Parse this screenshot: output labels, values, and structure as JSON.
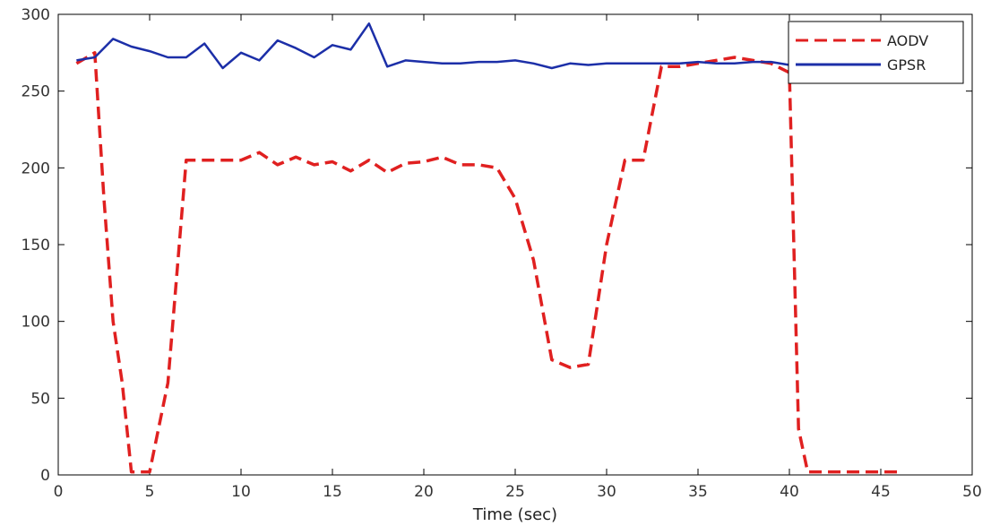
{
  "chart_data": {
    "type": "line",
    "title": "",
    "xlabel": "Time (sec)",
    "ylabel": "",
    "xlim": [
      0,
      50
    ],
    "ylim": [
      0,
      300
    ],
    "xticks": [
      0,
      5,
      10,
      15,
      20,
      25,
      30,
      35,
      40,
      45,
      50
    ],
    "yticks": [
      0,
      50,
      100,
      150,
      200,
      250,
      300
    ],
    "grid": false,
    "legend_position": "top-right",
    "series": [
      {
        "name": "AODV",
        "color": "#e02020",
        "style": "dashed",
        "x": [
          1,
          2,
          2.5,
          3,
          3.5,
          4,
          5,
          6,
          7,
          8,
          9,
          10,
          11,
          12,
          13,
          14,
          15,
          16,
          17,
          18,
          19,
          20,
          21,
          22,
          23,
          24,
          25,
          26,
          27,
          28,
          29,
          30,
          31,
          32,
          33,
          34,
          35,
          36,
          37,
          38,
          39,
          40,
          40.5,
          41,
          42,
          43,
          44,
          45,
          46
        ],
        "y": [
          268,
          275,
          180,
          100,
          60,
          2,
          2,
          60,
          205,
          205,
          205,
          205,
          210,
          202,
          207,
          202,
          204,
          198,
          205,
          197,
          203,
          204,
          207,
          202,
          202,
          200,
          180,
          140,
          75,
          70,
          72,
          150,
          205,
          205,
          266,
          266,
          268,
          270,
          272,
          270,
          268,
          262,
          30,
          2,
          2,
          2,
          2,
          2,
          2
        ]
      },
      {
        "name": "GPSR",
        "color": "#1c2fa8",
        "style": "solid",
        "x": [
          1,
          2,
          3,
          4,
          5,
          6,
          7,
          8,
          9,
          10,
          11,
          12,
          13,
          14,
          15,
          16,
          17,
          18,
          19,
          20,
          21,
          22,
          23,
          24,
          25,
          26,
          27,
          28,
          29,
          30,
          31,
          32,
          33,
          34,
          35,
          36,
          37,
          38,
          39,
          40
        ],
        "y": [
          270,
          272,
          284,
          279,
          276,
          272,
          272,
          281,
          265,
          275,
          270,
          283,
          278,
          272,
          280,
          277,
          294,
          266,
          270,
          269,
          268,
          268,
          269,
          269,
          270,
          268,
          265,
          268,
          267,
          268,
          268,
          268,
          268,
          268,
          269,
          268,
          268,
          269,
          269,
          267
        ]
      }
    ]
  }
}
